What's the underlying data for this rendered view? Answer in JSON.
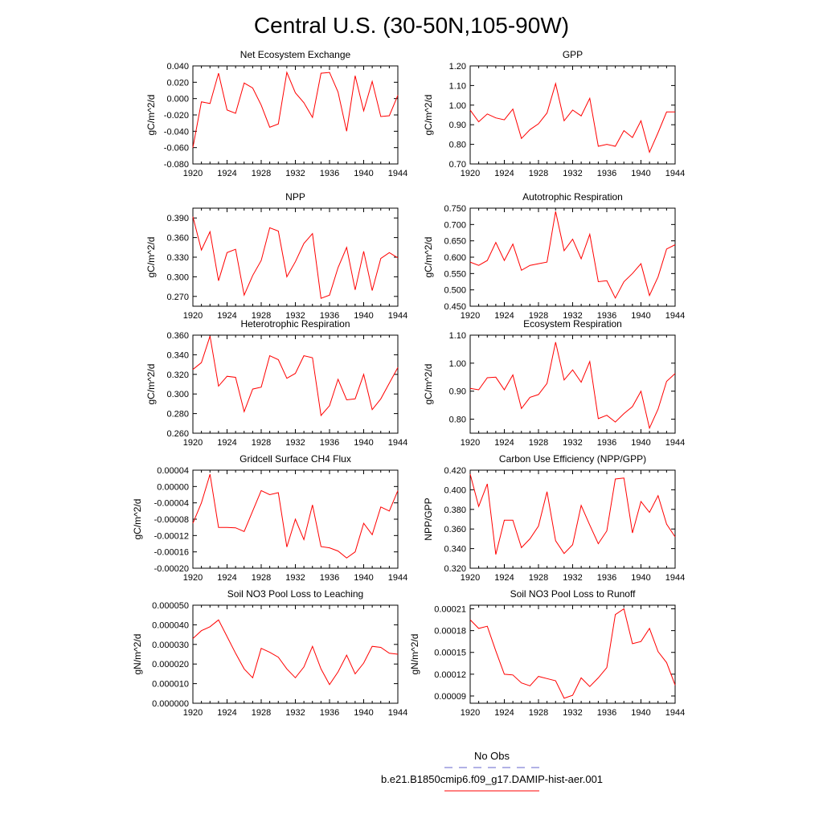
{
  "figure": {
    "title": "Central U.S. (30-50N,105-90W)",
    "line_color": "#ff0000",
    "obs_color": "#6666cc"
  },
  "legend": {
    "obs_label": "No Obs",
    "model_label": "b.e21.B1850cmip6.f09_g17.DAMIP-hist-aer.001"
  },
  "chart_data": [
    {
      "type": "line",
      "title": "Net Ecosystem Exchange",
      "ylabel": "gC/m^2/d",
      "xlim": [
        1920,
        1944
      ],
      "ylim": [
        -0.08,
        0.04
      ],
      "xticks": [
        1920,
        1924,
        1928,
        1932,
        1936,
        1940,
        1944
      ],
      "yticks": [
        -0.08,
        -0.06,
        -0.04,
        -0.02,
        0.0,
        0.02,
        0.04
      ],
      "ytick_labels": [
        "-0.080",
        "-0.060",
        "-0.040",
        "-0.020",
        "0.000",
        "0.020",
        "0.040"
      ],
      "x": [
        1920,
        1921,
        1922,
        1923,
        1924,
        1925,
        1926,
        1927,
        1928,
        1929,
        1930,
        1931,
        1932,
        1933,
        1934,
        1935,
        1936,
        1937,
        1938,
        1939,
        1940,
        1941,
        1942,
        1943,
        1944
      ],
      "series": [
        {
          "values": [
            -0.06,
            -0.004,
            -0.006,
            0.031,
            -0.014,
            -0.018,
            0.019,
            0.013,
            -0.008,
            -0.035,
            -0.031,
            0.032,
            0.007,
            -0.005,
            -0.023,
            0.031,
            0.032,
            0.008,
            -0.04,
            0.028,
            -0.015,
            0.021,
            -0.022,
            -0.021,
            0.004
          ]
        }
      ]
    },
    {
      "type": "line",
      "title": "GPP",
      "ylabel": "gC/m^2/d",
      "xlim": [
        1920,
        1944
      ],
      "ylim": [
        0.7,
        1.2
      ],
      "xticks": [
        1920,
        1924,
        1928,
        1932,
        1936,
        1940,
        1944
      ],
      "yticks": [
        0.7,
        0.8,
        0.9,
        1.0,
        1.1,
        1.2
      ],
      "ytick_labels": [
        "0.70",
        "0.80",
        "0.90",
        "1.00",
        "1.10",
        "1.20"
      ],
      "x": [
        1920,
        1921,
        1922,
        1923,
        1924,
        1925,
        1926,
        1927,
        1928,
        1929,
        1930,
        1931,
        1932,
        1933,
        1934,
        1935,
        1936,
        1937,
        1938,
        1939,
        1940,
        1941,
        1942,
        1943,
        1944
      ],
      "series": [
        {
          "values": [
            0.975,
            0.915,
            0.955,
            0.935,
            0.925,
            0.98,
            0.83,
            0.875,
            0.905,
            0.96,
            1.11,
            0.92,
            0.975,
            0.945,
            1.035,
            0.79,
            0.8,
            0.79,
            0.87,
            0.835,
            0.92,
            0.76,
            0.86,
            0.965,
            0.965
          ]
        }
      ]
    },
    {
      "type": "line",
      "title": "NPP",
      "ylabel": "gC/m^2/d",
      "xlim": [
        1920,
        1944
      ],
      "ylim": [
        0.255,
        0.405
      ],
      "xticks": [
        1920,
        1924,
        1928,
        1932,
        1936,
        1940,
        1944
      ],
      "yticks": [
        0.27,
        0.3,
        0.33,
        0.36,
        0.39
      ],
      "ytick_labels": [
        "0.270",
        "0.300",
        "0.330",
        "0.360",
        "0.390"
      ],
      "x": [
        1920,
        1921,
        1922,
        1923,
        1924,
        1925,
        1926,
        1927,
        1928,
        1929,
        1930,
        1931,
        1932,
        1933,
        1934,
        1935,
        1936,
        1937,
        1938,
        1939,
        1940,
        1941,
        1942,
        1943,
        1944
      ],
      "series": [
        {
          "values": [
            0.392,
            0.341,
            0.369,
            0.294,
            0.337,
            0.342,
            0.272,
            0.302,
            0.325,
            0.375,
            0.37,
            0.3,
            0.323,
            0.351,
            0.366,
            0.267,
            0.272,
            0.314,
            0.345,
            0.28,
            0.339,
            0.279,
            0.328,
            0.337,
            0.329
          ]
        }
      ]
    },
    {
      "type": "line",
      "title": "Autotrophic Respiration",
      "ylabel": "gC/m^2/d",
      "xlim": [
        1920,
        1944
      ],
      "ylim": [
        0.45,
        0.75
      ],
      "xticks": [
        1920,
        1924,
        1928,
        1932,
        1936,
        1940,
        1944
      ],
      "yticks": [
        0.45,
        0.5,
        0.55,
        0.6,
        0.65,
        0.7,
        0.75
      ],
      "ytick_labels": [
        "0.450",
        "0.500",
        "0.550",
        "0.600",
        "0.650",
        "0.700",
        "0.750"
      ],
      "x": [
        1920,
        1921,
        1922,
        1923,
        1924,
        1925,
        1926,
        1927,
        1928,
        1929,
        1930,
        1931,
        1932,
        1933,
        1934,
        1935,
        1936,
        1937,
        1938,
        1939,
        1940,
        1941,
        1942,
        1943,
        1944
      ],
      "series": [
        {
          "values": [
            0.585,
            0.575,
            0.59,
            0.645,
            0.59,
            0.64,
            0.56,
            0.575,
            0.58,
            0.585,
            0.74,
            0.62,
            0.655,
            0.595,
            0.67,
            0.525,
            0.528,
            0.475,
            0.525,
            0.55,
            0.58,
            0.483,
            0.54,
            0.625,
            0.638
          ]
        }
      ]
    },
    {
      "type": "line",
      "title": "Heterotrophic Respiration",
      "ylabel": "gC/m^2/d",
      "xlim": [
        1920,
        1944
      ],
      "ylim": [
        0.26,
        0.36
      ],
      "xticks": [
        1920,
        1924,
        1928,
        1932,
        1936,
        1940,
        1944
      ],
      "yticks": [
        0.26,
        0.28,
        0.3,
        0.32,
        0.34,
        0.36
      ],
      "ytick_labels": [
        "0.260",
        "0.280",
        "0.300",
        "0.320",
        "0.340",
        "0.360"
      ],
      "x": [
        1920,
        1921,
        1922,
        1923,
        1924,
        1925,
        1926,
        1927,
        1928,
        1929,
        1930,
        1931,
        1932,
        1933,
        1934,
        1935,
        1936,
        1937,
        1938,
        1939,
        1940,
        1941,
        1942,
        1943,
        1944
      ],
      "series": [
        {
          "values": [
            0.325,
            0.332,
            0.359,
            0.308,
            0.318,
            0.317,
            0.282,
            0.305,
            0.307,
            0.339,
            0.335,
            0.316,
            0.321,
            0.339,
            0.337,
            0.278,
            0.288,
            0.315,
            0.294,
            0.295,
            0.32,
            0.284,
            0.295,
            0.311,
            0.327
          ]
        }
      ]
    },
    {
      "type": "line",
      "title": "Ecosystem Respiration",
      "ylabel": "gC/m^2/d",
      "xlim": [
        1920,
        1944
      ],
      "ylim": [
        0.75,
        1.1
      ],
      "xticks": [
        1920,
        1924,
        1928,
        1932,
        1936,
        1940,
        1944
      ],
      "yticks": [
        0.8,
        0.9,
        1.0,
        1.1
      ],
      "ytick_labels": [
        "0.80",
        "0.90",
        "1.00",
        "1.10"
      ],
      "x": [
        1920,
        1921,
        1922,
        1923,
        1924,
        1925,
        1926,
        1927,
        1928,
        1929,
        1930,
        1931,
        1932,
        1933,
        1934,
        1935,
        1936,
        1937,
        1938,
        1939,
        1940,
        1941,
        1942,
        1943,
        1944
      ],
      "series": [
        {
          "values": [
            0.91,
            0.905,
            0.948,
            0.95,
            0.905,
            0.958,
            0.838,
            0.878,
            0.888,
            0.928,
            1.075,
            0.94,
            0.976,
            0.932,
            1.006,
            0.802,
            0.814,
            0.79,
            0.82,
            0.845,
            0.9,
            0.768,
            0.836,
            0.935,
            0.963
          ]
        }
      ]
    },
    {
      "type": "line",
      "title": "Gridcell Surface CH4 Flux",
      "ylabel": "gC/m^2/d",
      "xlim": [
        1920,
        1944
      ],
      "ylim": [
        -0.0002,
        4e-05
      ],
      "xticks": [
        1920,
        1924,
        1928,
        1932,
        1936,
        1940,
        1944
      ],
      "yticks": [
        -0.0002,
        -0.00016,
        -0.00012,
        -8e-05,
        -4e-05,
        0.0,
        4e-05
      ],
      "ytick_labels": [
        "-0.00020",
        "-0.00016",
        "-0.00012",
        "-0.00008",
        "-0.00004",
        "0.00000",
        "0.00004"
      ],
      "x": [
        1920,
        1921,
        1922,
        1923,
        1924,
        1925,
        1926,
        1927,
        1928,
        1929,
        1930,
        1931,
        1932,
        1933,
        1934,
        1935,
        1936,
        1937,
        1938,
        1939,
        1940,
        1941,
        1942,
        1943,
        1944
      ],
      "series": [
        {
          "values": [
            -9e-05,
            -4e-05,
            3e-05,
            -0.0001,
            -0.0001,
            -0.000101,
            -0.00011,
            -6e-05,
            -1e-05,
            -2e-05,
            -1.5e-05,
            -0.000148,
            -8e-05,
            -0.00013,
            -4.5e-05,
            -0.000147,
            -0.00015,
            -0.000158,
            -0.000175,
            -0.00016,
            -9e-05,
            -0.000118,
            -5e-05,
            -6e-05,
            -1e-05
          ]
        }
      ]
    },
    {
      "type": "line",
      "title": "Carbon Use Efficiency (NPP/GPP)",
      "ylabel": "NPP/GPP",
      "xlim": [
        1920,
        1944
      ],
      "ylim": [
        0.32,
        0.42
      ],
      "xticks": [
        1920,
        1924,
        1928,
        1932,
        1936,
        1940,
        1944
      ],
      "yticks": [
        0.32,
        0.34,
        0.36,
        0.38,
        0.4,
        0.42
      ],
      "ytick_labels": [
        "0.320",
        "0.340",
        "0.360",
        "0.380",
        "0.400",
        "0.420"
      ],
      "x": [
        1920,
        1921,
        1922,
        1923,
        1924,
        1925,
        1926,
        1927,
        1928,
        1929,
        1930,
        1931,
        1932,
        1933,
        1934,
        1935,
        1936,
        1937,
        1938,
        1939,
        1940,
        1941,
        1942,
        1943,
        1944
      ],
      "series": [
        {
          "values": [
            0.416,
            0.383,
            0.406,
            0.334,
            0.369,
            0.369,
            0.341,
            0.35,
            0.363,
            0.398,
            0.348,
            0.335,
            0.344,
            0.384,
            0.364,
            0.345,
            0.358,
            0.411,
            0.412,
            0.356,
            0.388,
            0.377,
            0.394,
            0.365,
            0.352
          ]
        }
      ]
    },
    {
      "type": "line",
      "title": "Soil NO3 Pool Loss to Leaching",
      "ylabel": "gN/m^2/d",
      "xlim": [
        1920,
        1944
      ],
      "ylim": [
        0.0,
        5e-05
      ],
      "xticks": [
        1920,
        1924,
        1928,
        1932,
        1936,
        1940,
        1944
      ],
      "yticks": [
        0.0,
        1e-05,
        2e-05,
        3e-05,
        4e-05,
        5e-05
      ],
      "ytick_labels": [
        "0.000000",
        "0.000010",
        "0.000020",
        "0.000030",
        "0.000040",
        "0.000050"
      ],
      "x": [
        1920,
        1921,
        1922,
        1923,
        1924,
        1925,
        1926,
        1927,
        1928,
        1929,
        1930,
        1931,
        1932,
        1933,
        1934,
        1935,
        1936,
        1937,
        1938,
        1939,
        1940,
        1941,
        1942,
        1943,
        1944
      ],
      "series": [
        {
          "values": [
            3.3e-05,
            3.7e-05,
            3.9e-05,
            4.25e-05,
            3.4e-05,
            2.55e-05,
            1.75e-05,
            1.3e-05,
            2.8e-05,
            2.6e-05,
            2.35e-05,
            1.75e-05,
            1.3e-05,
            1.85e-05,
            2.9e-05,
            1.75e-05,
            9.5e-06,
            1.6e-05,
            2.45e-05,
            1.5e-05,
            2.05e-05,
            2.9e-05,
            2.85e-05,
            2.55e-05,
            2.5e-05
          ]
        }
      ]
    },
    {
      "type": "line",
      "title": "Soil NO3 Pool Loss to Runoff",
      "ylabel": "gN/m^2/d",
      "xlim": [
        1920,
        1944
      ],
      "ylim": [
        8e-05,
        0.000215
      ],
      "xticks": [
        1920,
        1924,
        1928,
        1932,
        1936,
        1940,
        1944
      ],
      "yticks": [
        9e-05,
        0.00012,
        0.00015,
        0.00018,
        0.00021
      ],
      "ytick_labels": [
        "0.00009",
        "0.00012",
        "0.00015",
        "0.00018",
        "0.00021"
      ],
      "x": [
        1920,
        1921,
        1922,
        1923,
        1924,
        1925,
        1926,
        1927,
        1928,
        1929,
        1930,
        1931,
        1932,
        1933,
        1934,
        1935,
        1936,
        1937,
        1938,
        1939,
        1940,
        1941,
        1942,
        1943,
        1944
      ],
      "series": [
        {
          "values": [
            0.000195,
            0.000183,
            0.000186,
            0.000152,
            0.00012,
            0.000119,
            0.000108,
            0.000104,
            0.000117,
            0.000114,
            0.000111,
            8.7e-05,
            9.1e-05,
            0.000115,
            0.000103,
            0.000115,
            0.000129,
            0.000202,
            0.00021,
            0.000162,
            0.000165,
            0.000183,
            0.000151,
            0.000136,
            0.000105
          ]
        }
      ]
    }
  ]
}
